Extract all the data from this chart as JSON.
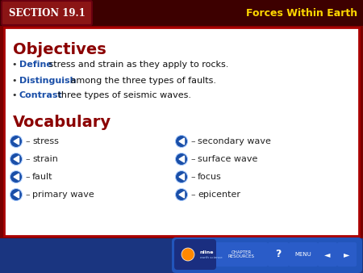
{
  "bg_color": "#7A0000",
  "header_bg": "#4A0000",
  "slide_bg": "#FFFFFF",
  "title_text": "Forces Within Earth",
  "title_color": "#FFD700",
  "section_label": "Sᴇᴄᴛɯɴ 19.1",
  "section_label_display": "SECTION 19.1",
  "section_label_color": "#FFFFFF",
  "objectives_title": "Objectives",
  "objectives_color": "#8B0000",
  "vocab_title": "Vocabulary",
  "vocab_color": "#8B0000",
  "bullet_keyword_color": "#1A4FA8",
  "bullet_text_color": "#111111",
  "bullets": [
    {
      "keyword": "Define",
      "rest": " stress and strain as they apply to rocks."
    },
    {
      "keyword": "Distinguish",
      "rest": " among the three types of faults."
    },
    {
      "keyword": "Contrast",
      "rest": " three types of seismic waves."
    }
  ],
  "vocab_left": [
    "stress",
    "strain",
    "fault",
    "primary wave"
  ],
  "vocab_right": [
    "secondary wave",
    "surface wave",
    "focus",
    "epicenter"
  ],
  "vocab_icon_color": "#1A4FA8",
  "vocab_text_color": "#222222",
  "footer_bg": "#1A3580",
  "content_border": "#AA0000"
}
